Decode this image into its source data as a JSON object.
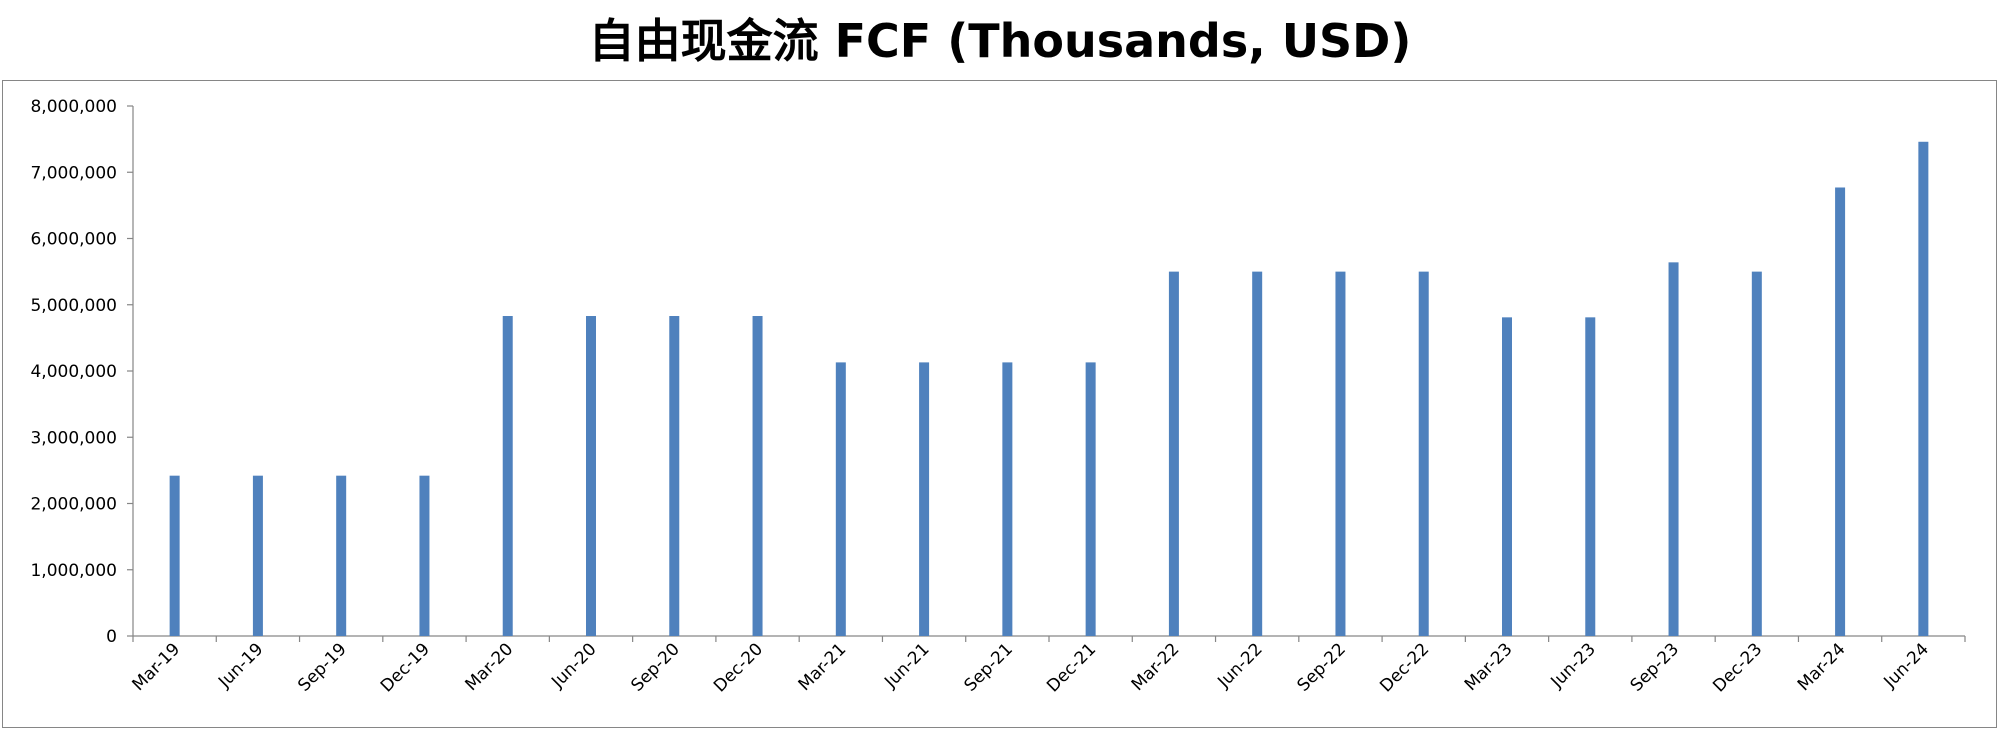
{
  "chart_data": {
    "type": "bar",
    "title": "自由现金流 FCF (Thousands, USD)",
    "xlabel": "",
    "ylabel": "",
    "categories": [
      "Mar-19",
      "Jun-19",
      "Sep-19",
      "Dec-19",
      "Mar-20",
      "Jun-20",
      "Sep-20",
      "Dec-20",
      "Mar-21",
      "Jun-21",
      "Sep-21",
      "Dec-21",
      "Mar-22",
      "Jun-22",
      "Sep-22",
      "Dec-22",
      "Mar-23",
      "Jun-23",
      "Sep-23",
      "Dec-23",
      "Mar-24",
      "Jun-24"
    ],
    "values": [
      2420000,
      2420000,
      2420000,
      2420000,
      4830000,
      4830000,
      4830000,
      4830000,
      4130000,
      4130000,
      4130000,
      4130000,
      5500000,
      5500000,
      5500000,
      5500000,
      4810000,
      4810000,
      5640000,
      5500000,
      6770000,
      7460000
    ],
    "ylim": [
      0,
      8000000
    ],
    "yticks": [
      0,
      1000000,
      2000000,
      3000000,
      4000000,
      5000000,
      6000000,
      7000000,
      8000000
    ],
    "ytick_labels": [
      "0",
      "1,000,000",
      "2,000,000",
      "3,000,000",
      "4,000,000",
      "5,000,000",
      "6,000,000",
      "7,000,000",
      "8,000,000"
    ],
    "grid": false,
    "legend": "none",
    "bar_color": "#4F81BD",
    "axis_color": "#868686"
  }
}
